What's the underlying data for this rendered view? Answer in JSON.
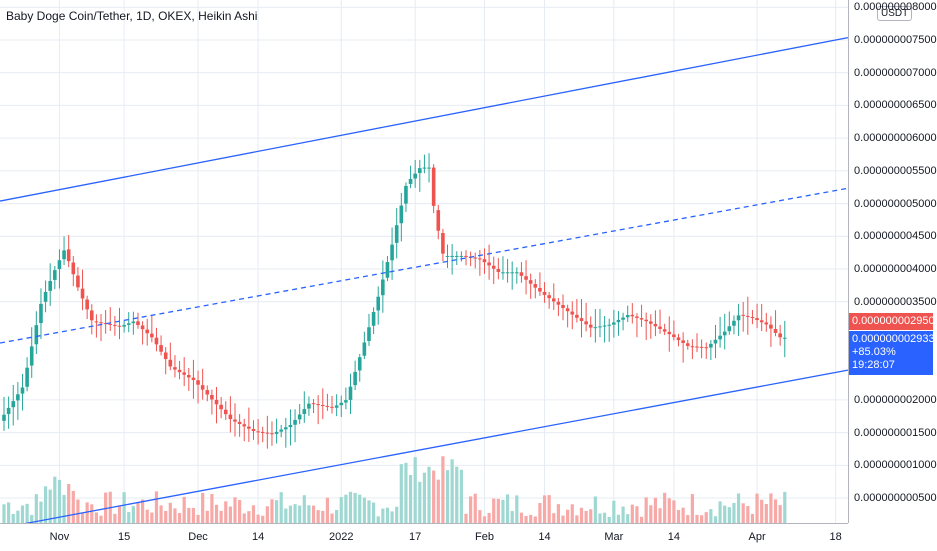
{
  "header": {
    "title": "Baby Doge Coin/Tether, 1D, OKEX, Heikin Ashi"
  },
  "price_axis": {
    "unit": "USDT",
    "ticks": [
      "0.000000008000",
      "0.000000007500",
      "0.000000007000",
      "0.000000006500",
      "0.000000006000",
      "0.000000005500",
      "0.000000005000",
      "0.000000004500",
      "0.000000004000",
      "0.000000003500",
      "0.000000002000",
      "0.000000001500",
      "0.000000001000",
      "0.000000000500"
    ],
    "last_price": "0.000000002950",
    "line_price": "0.000000002933",
    "change_percent": "+85.03%",
    "countdown": "19:28:07"
  },
  "time_axis": {
    "ticks": [
      "Nov",
      "15",
      "Dec",
      "14",
      "2022",
      "17",
      "Feb",
      "14",
      "Mar",
      "14",
      "Apr",
      "18"
    ]
  },
  "colors": {
    "up": "#26a69a",
    "down": "#ef5350",
    "trendline": "#2962ff",
    "grid": "#e6ecf3"
  },
  "chart_data": {
    "type": "candlestick",
    "title": "Baby Doge Coin/Tether, 1D, OKEX, Heikin Ashi",
    "y_unit": "USDT",
    "y_scale": 1e-09,
    "ylim": [
      0.18,
      8.05
    ],
    "x_start": "2021-10-20",
    "x_ticks": [
      {
        "label": "Nov",
        "date": "2021-11-01"
      },
      {
        "label": "15",
        "date": "2021-11-15"
      },
      {
        "label": "Dec",
        "date": "2021-12-01"
      },
      {
        "label": "14",
        "date": "2021-12-14"
      },
      {
        "label": "2022",
        "date": "2022-01-01"
      },
      {
        "label": "17",
        "date": "2022-01-17"
      },
      {
        "label": "Feb",
        "date": "2022-02-01"
      },
      {
        "label": "14",
        "date": "2022-02-14"
      },
      {
        "label": "Mar",
        "date": "2022-03-01"
      },
      {
        "label": "14",
        "date": "2022-03-14"
      },
      {
        "label": "Apr",
        "date": "2022-04-01"
      },
      {
        "label": "18",
        "date": "2022-04-18"
      }
    ],
    "close_anchors": [
      [
        "2021-10-20",
        1.68
      ],
      [
        "2021-10-25",
        2.2
      ],
      [
        "2021-10-29",
        3.5
      ],
      [
        "2021-11-01",
        4.0
      ],
      [
        "2021-11-03",
        4.3
      ],
      [
        "2021-11-06",
        3.7
      ],
      [
        "2021-11-09",
        3.2
      ],
      [
        "2021-11-15",
        3.12
      ],
      [
        "2021-11-18",
        3.2
      ],
      [
        "2021-11-22",
        2.95
      ],
      [
        "2021-11-26",
        2.5
      ],
      [
        "2021-12-01",
        2.3
      ],
      [
        "2021-12-05",
        2.0
      ],
      [
        "2021-12-09",
        1.7
      ],
      [
        "2021-12-14",
        1.52
      ],
      [
        "2021-12-18",
        1.48
      ],
      [
        "2021-12-22",
        1.62
      ],
      [
        "2021-12-26",
        1.95
      ],
      [
        "2021-12-31",
        1.88
      ],
      [
        "2022-01-03",
        2.0
      ],
      [
        "2022-01-07",
        2.9
      ],
      [
        "2022-01-10",
        3.6
      ],
      [
        "2022-01-13",
        4.4
      ],
      [
        "2022-01-16",
        5.3
      ],
      [
        "2022-01-19",
        5.55
      ],
      [
        "2022-01-21",
        5.55
      ],
      [
        "2022-01-22",
        4.9
      ],
      [
        "2022-01-24",
        4.2
      ],
      [
        "2022-01-28",
        4.2
      ],
      [
        "2022-02-01",
        4.15
      ],
      [
        "2022-02-05",
        3.95
      ],
      [
        "2022-02-09",
        3.95
      ],
      [
        "2022-02-14",
        3.65
      ],
      [
        "2022-02-20",
        3.35
      ],
      [
        "2022-02-25",
        3.1
      ],
      [
        "2022-03-01",
        3.15
      ],
      [
        "2022-03-05",
        3.3
      ],
      [
        "2022-03-09",
        3.2
      ],
      [
        "2022-03-14",
        3.0
      ],
      [
        "2022-03-18",
        2.82
      ],
      [
        "2022-03-22",
        2.8
      ],
      [
        "2022-03-26",
        3.05
      ],
      [
        "2022-03-29",
        3.3
      ],
      [
        "2022-04-01",
        3.25
      ],
      [
        "2022-04-04",
        3.15
      ],
      [
        "2022-04-07",
        2.95
      ]
    ],
    "volume_bars": 130,
    "trendlines": [
      {
        "name": "upper",
        "style": "solid",
        "from": [
          "2021-10-20",
          5.05
        ],
        "to": [
          "2022-04-18",
          7.5
        ]
      },
      {
        "name": "mid",
        "style": "dashed",
        "from": [
          "2021-10-20",
          2.88
        ],
        "to": [
          "2022-04-18",
          5.2
        ]
      },
      {
        "name": "lower",
        "style": "solid",
        "from": [
          "2021-10-20",
          0.05
        ],
        "to": [
          "2022-04-18",
          2.42
        ]
      }
    ]
  }
}
